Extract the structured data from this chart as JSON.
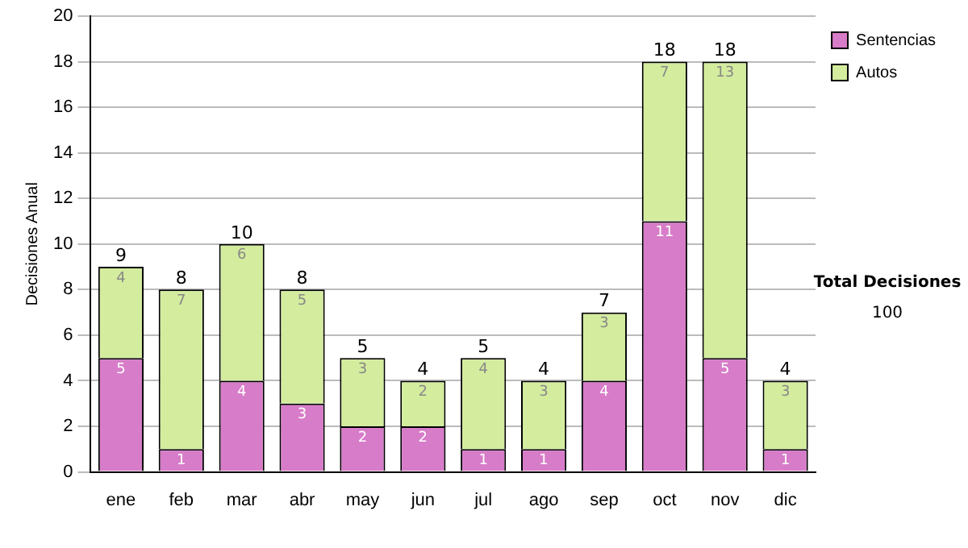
{
  "chart_data": {
    "type": "bar",
    "stacked": true,
    "ylabel": "Decisiones Anual",
    "categories": [
      "ene",
      "feb",
      "mar",
      "abr",
      "may",
      "jun",
      "jul",
      "ago",
      "sep",
      "oct",
      "nov",
      "dic"
    ],
    "series": [
      {
        "name": "Sentencias",
        "color": "#d77cc8",
        "values": [
          5,
          1,
          4,
          3,
          2,
          2,
          1,
          1,
          4,
          11,
          5,
          1
        ]
      },
      {
        "name": "Autos",
        "color": "#d4ec9e",
        "values": [
          4,
          7,
          6,
          5,
          3,
          2,
          4,
          3,
          3,
          7,
          13,
          3
        ]
      }
    ],
    "totals": [
      "9",
      "8",
      "10",
      "8",
      "5",
      "4",
      "5",
      "4",
      "7",
      "18",
      "18",
      "4"
    ],
    "data_labels": true,
    "ylim": [
      0,
      20
    ],
    "yticks": [
      0,
      2,
      4,
      6,
      8,
      10,
      12,
      14,
      16,
      18,
      20
    ],
    "grid": "y",
    "legend": "right",
    "annotations": [
      "Total Decisiones",
      "100"
    ]
  }
}
